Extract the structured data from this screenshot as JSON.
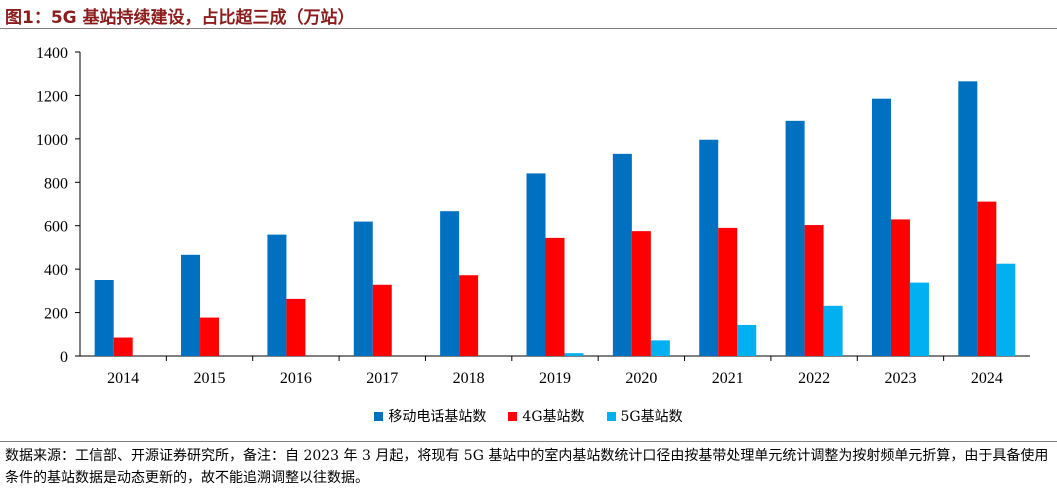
{
  "figure": {
    "title": "图1：5G 基站持续建设，占比超三成（万站）",
    "source_note": "数据来源：工信部、开源证券研究所，备注：自 2023 年 3 月起，将现有 5G 基站中的室内基站数统计口径由按基带处理单元统计调整为按射频单元折算，由于具备使用条件的基站数据是动态更新的，故不能追溯调整以往数据。"
  },
  "chart_data": {
    "type": "bar",
    "categories": [
      "2014",
      "2015",
      "2016",
      "2017",
      "2018",
      "2019",
      "2020",
      "2021",
      "2022",
      "2023",
      "2024"
    ],
    "series": [
      {
        "name": "移动电话基站数",
        "color": "#0070c0",
        "values": [
          350,
          466,
          559,
          619,
          667,
          841,
          931,
          996,
          1083,
          1185,
          1265
        ]
      },
      {
        "name": "4G基站数",
        "color": "#ff0000",
        "values": [
          85,
          177,
          263,
          328,
          372,
          544,
          575,
          590,
          603,
          629,
          711
        ]
      },
      {
        "name": "5G基站数",
        "color": "#00b0f0",
        "values": [
          0,
          0,
          0,
          0,
          0,
          13,
          72,
          143,
          231,
          338,
          425
        ]
      }
    ],
    "ylim": [
      0,
      1400
    ],
    "yticks": [
      0,
      200,
      400,
      600,
      800,
      1000,
      1200,
      1400
    ],
    "grid": false,
    "legend_position": "bottom"
  }
}
